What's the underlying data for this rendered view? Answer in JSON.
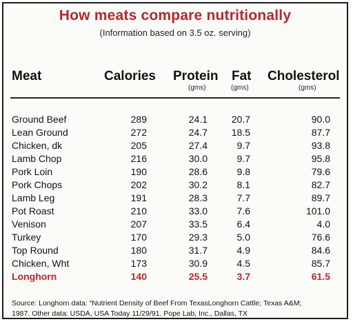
{
  "title": "How meats compare nutritionally",
  "subtitle": "(Information based on 3.5 oz. serving)",
  "columns": [
    {
      "label": "Meat",
      "unit": ""
    },
    {
      "label": "Calories",
      "unit": ""
    },
    {
      "label": "Protein",
      "unit": "(gms)"
    },
    {
      "label": "Fat",
      "unit": "(gms)"
    },
    {
      "label": "Cholesterol",
      "unit": "(gms)"
    }
  ],
  "rows": [
    {
      "meat": "Ground Beef",
      "calories": "289",
      "protein": "24.1",
      "fat": "20.7",
      "cholesterol": "90.0"
    },
    {
      "meat": "Lean Ground",
      "calories": "272",
      "protein": "24.7",
      "fat": "18.5",
      "cholesterol": "87.7"
    },
    {
      "meat": "Chicken, dk",
      "calories": "205",
      "protein": "27.4",
      "fat": "9.7",
      "cholesterol": "93.8"
    },
    {
      "meat": "Lamb Chop",
      "calories": "216",
      "protein": "30.0",
      "fat": "9.7",
      "cholesterol": "95.8"
    },
    {
      "meat": "Pork Loin",
      "calories": "190",
      "protein": "28.6",
      "fat": "9.8",
      "cholesterol": "79.6"
    },
    {
      "meat": "Pork Chops",
      "calories": "202",
      "protein": "30.2",
      "fat": "8.1",
      "cholesterol": "82.7"
    },
    {
      "meat": "Lamb Leg",
      "calories": "191",
      "protein": "28.3",
      "fat": "7.7",
      "cholesterol": "89.7"
    },
    {
      "meat": "Pot Roast",
      "calories": "210",
      "protein": "33.0",
      "fat": "7.6",
      "cholesterol": "101.0"
    },
    {
      "meat": "Venison",
      "calories": "207",
      "protein": "33.5",
      "fat": "6.4",
      "cholesterol": "4.0"
    },
    {
      "meat": "Turkey",
      "calories": "170",
      "protein": "29.3",
      "fat": "5.0",
      "cholesterol": "76.6"
    },
    {
      "meat": "Top Round",
      "calories": "180",
      "protein": "31.7",
      "fat": "4.9",
      "cholesterol": "84.6"
    },
    {
      "meat": "Chicken, Wht",
      "calories": "173",
      "protein": "30.9",
      "fat": "4.5",
      "cholesterol": "85.7"
    },
    {
      "meat": "Longhorn",
      "calories": "140",
      "protein": "25.5",
      "fat": "3.7",
      "cholesterol": "61.5"
    }
  ],
  "highlight_row": "Longhorn",
  "footer": {
    "line1": "Source: Longhorn data: “Nutrient Density of Beef From TexasLonghorn Cattle; Texas A&M;",
    "line2": "1987.  Other data: USDA, USA Today 11/29/91.  Pope Lab, Inc., Dallas, TX"
  },
  "colors": {
    "title": "#b5272b",
    "highlight": "#b5272b",
    "text": "#111111"
  }
}
